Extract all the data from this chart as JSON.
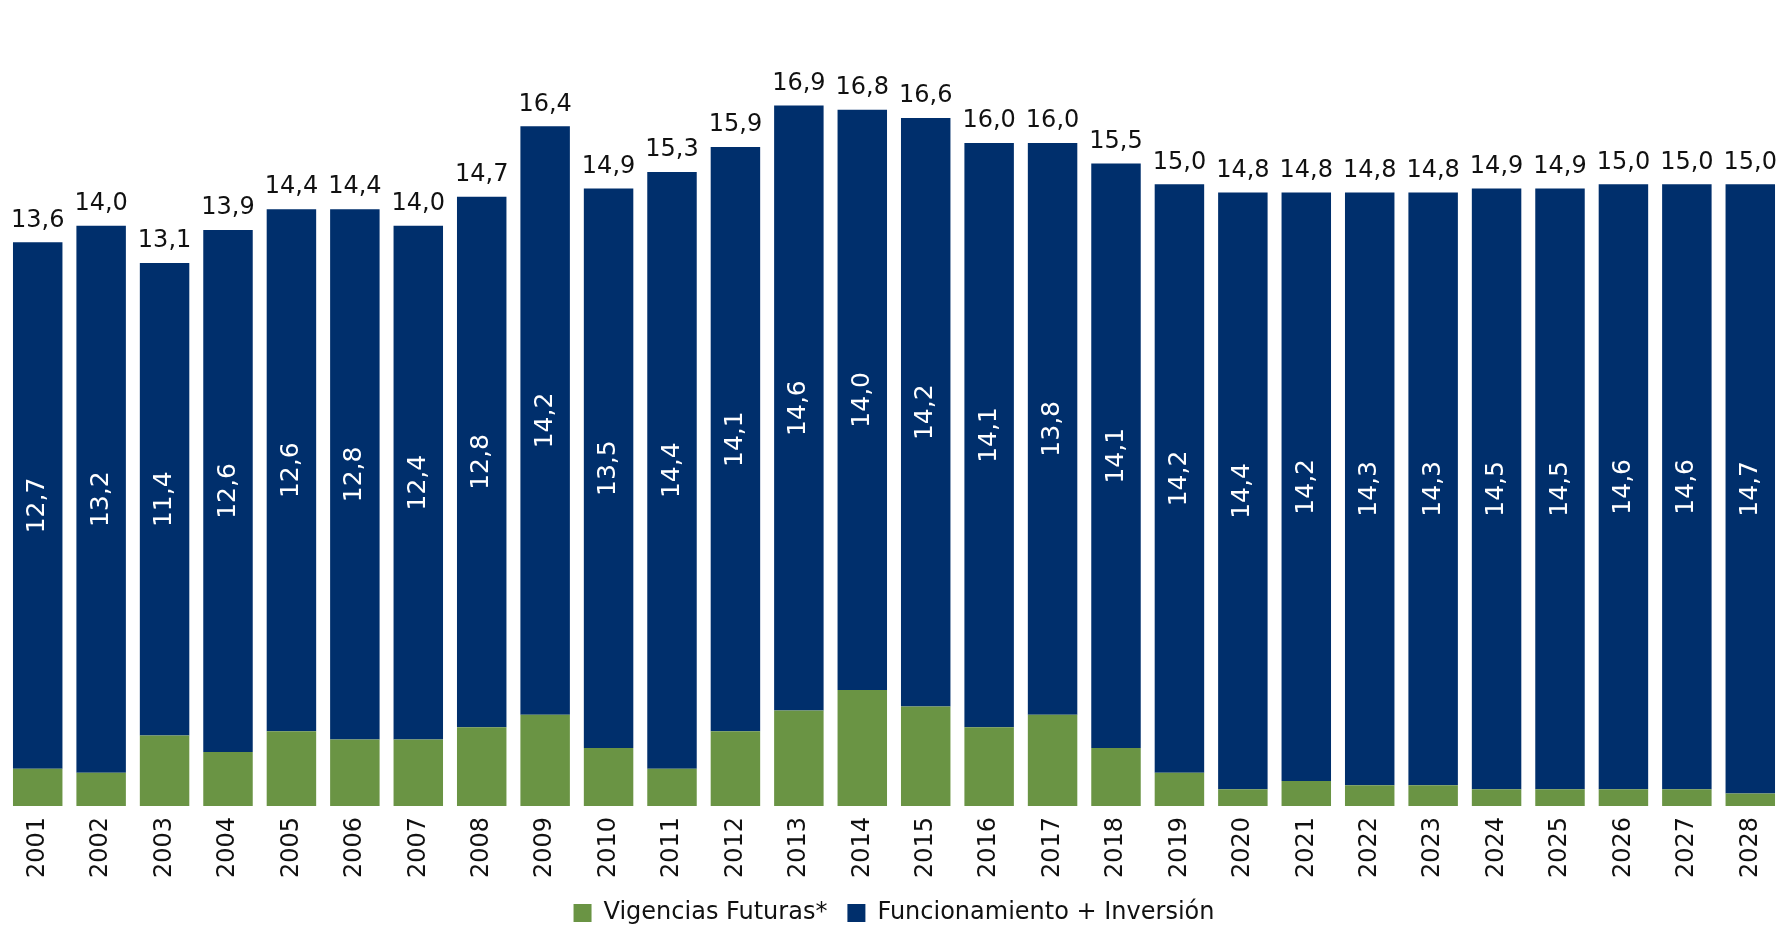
{
  "chart_data": {
    "type": "bar",
    "stacked": true,
    "legend": "bottom",
    "tick_labels": "x",
    "categories": [
      "2001",
      "2002",
      "2003",
      "2004",
      "2005",
      "2006",
      "2007",
      "2008",
      "2009",
      "2010",
      "2011",
      "2012",
      "2013",
      "2014",
      "2015",
      "2016",
      "2017",
      "2018",
      "2019",
      "2020",
      "2021",
      "2022",
      "2023",
      "2024",
      "2025",
      "2026",
      "2027",
      "2028"
    ],
    "series": [
      {
        "name": "Vigencias Futuras*",
        "color": "#6a9444",
        "values": [
          0.9,
          0.8,
          1.7,
          1.3,
          1.8,
          1.6,
          1.6,
          1.9,
          2.2,
          1.4,
          0.9,
          1.8,
          2.3,
          2.8,
          2.4,
          1.9,
          2.2,
          1.4,
          0.8,
          0.4,
          0.6,
          0.5,
          0.5,
          0.4,
          0.4,
          0.4,
          0.4,
          0.3
        ]
      },
      {
        "name": "Funcionamiento + Inversión",
        "color": "#002f6c",
        "values": [
          12.7,
          13.2,
          11.4,
          12.6,
          12.6,
          12.8,
          12.4,
          12.8,
          14.2,
          13.5,
          14.4,
          14.1,
          14.6,
          14.0,
          14.2,
          14.1,
          13.8,
          14.1,
          14.2,
          14.4,
          14.2,
          14.3,
          14.3,
          14.5,
          14.5,
          14.6,
          14.6,
          14.7
        ],
        "value_labels": [
          "12,7",
          "13,2",
          "11,4",
          "12,6",
          "12,6",
          "12,8",
          "12,4",
          "12,8",
          "14,2",
          "13,5",
          "14,4",
          "14,1",
          "14,6",
          "14,0",
          "14,2",
          "14,1",
          "13,8",
          "14,1",
          "14,2",
          "14,4",
          "14,2",
          "14,3",
          "14,3",
          "14,5",
          "14,5",
          "14,6",
          "14,6",
          "14,7"
        ]
      }
    ],
    "totals": [
      "13,6",
      "14,0",
      "13,1",
      "13,9",
      "14,4",
      "14,4",
      "14,0",
      "14,7",
      "16,4",
      "14,9",
      "15,3",
      "15,9",
      "16,9",
      "16,8",
      "16,6",
      "16,0",
      "16,0",
      "15,5",
      "15,0",
      "14,8",
      "14,8",
      "14,8",
      "14,8",
      "14,9",
      "14,9",
      "15,0",
      "15,0",
      "15,0"
    ]
  }
}
